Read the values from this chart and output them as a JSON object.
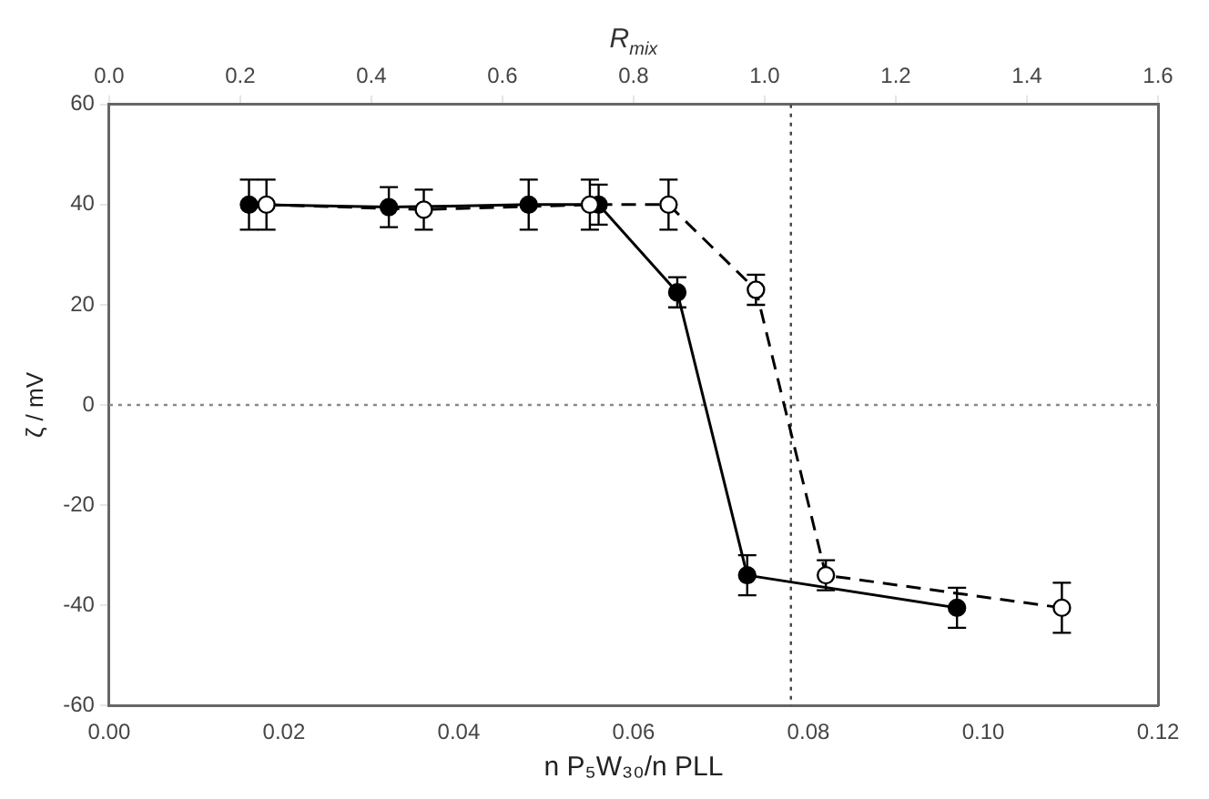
{
  "chart_data": {
    "type": "line",
    "xlabel": "n P₅W₃₀/n PLL",
    "ylabel": "ζ / mV",
    "x2label": "R$_{mix}$",
    "series": [
      {
        "color": "#000000",
        "line_style": "solid",
        "x": [
          0.016,
          0.032,
          0.048,
          0.056,
          0.065,
          0.073,
          0.097
        ],
        "values": [
          40,
          39.5,
          40,
          40,
          22.5,
          -34,
          -40.5
        ],
        "errors": [
          5,
          4,
          5,
          4,
          3,
          4,
          4
        ]
      },
      {
        "color": "#000000",
        "line_style": "dashed",
        "x": [
          0.018,
          0.036,
          0.055,
          0.064,
          0.074,
          0.082,
          0.109
        ],
        "values": [
          40,
          39,
          40,
          40,
          23,
          -34,
          -40.5
        ],
        "errors": [
          5,
          4,
          5,
          5,
          3,
          3,
          5
        ]
      }
    ],
    "xlim": [
      0,
      0.12
    ],
    "xticks": [
      {
        "value": 0,
        "label": "0.00"
      },
      {
        "value": 0.02,
        "label": "0.02"
      },
      {
        "value": 0.04,
        "label": "0.04"
      },
      {
        "value": 0.06,
        "label": "0.06"
      },
      {
        "value": 0.08,
        "label": "0.08"
      },
      {
        "value": 0.1,
        "label": "0.10"
      },
      {
        "value": 0.12,
        "label": "0.12"
      }
    ],
    "x2lim": [
      0,
      1.6
    ],
    "x2ticks": [
      {
        "value": 0,
        "label": "0.0"
      },
      {
        "value": 0.2,
        "label": "0.2"
      },
      {
        "value": 0.4,
        "label": "0.4"
      },
      {
        "value": 0.6,
        "label": "0.6"
      },
      {
        "value": 0.8,
        "label": "0.8"
      },
      {
        "value": 1,
        "label": "1.0"
      },
      {
        "value": 1.2,
        "label": "1.2"
      },
      {
        "value": 1.4,
        "label": "1.4"
      },
      {
        "value": 1.6,
        "label": "1.6"
      }
    ],
    "ylim": [
      -60,
      60
    ],
    "yticks": [
      -60,
      -40,
      -20,
      0,
      20,
      40,
      60
    ],
    "ref_lines": [
      {
        "axis": "y",
        "value": 0,
        "line_style": "dotted",
        "color": "#888888"
      },
      {
        "axis": "x",
        "value": 0.078,
        "line_style": "dotted",
        "color": "#444444"
      }
    ],
    "marker": "circle",
    "grid": false,
    "legend": false
  }
}
